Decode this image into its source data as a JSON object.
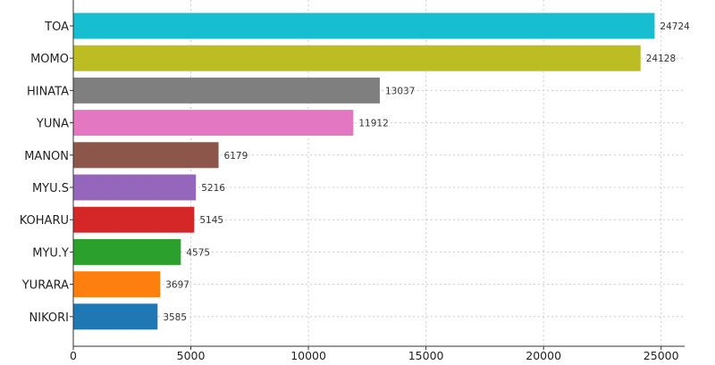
{
  "chart_data": {
    "type": "bar",
    "orientation": "horizontal",
    "title": "",
    "xlabel": "",
    "ylabel": "",
    "grid": true,
    "xlim": [
      0,
      26000
    ],
    "xticks": [
      0,
      5000,
      10000,
      15000,
      20000,
      25000
    ],
    "xtick_labels": [
      "0",
      "5000",
      "10000",
      "15000",
      "20000",
      "25000"
    ],
    "categories": [
      "TOA",
      "MOMO",
      "HINATA",
      "YUNA",
      "MANON",
      "MYU.S",
      "KOHARU",
      "MYU.Y",
      "YURARA",
      "NIKORI"
    ],
    "values": [
      24724,
      24128,
      13037,
      11912,
      6179,
      5216,
      5145,
      4575,
      3697,
      3585
    ],
    "value_labels": [
      "24724",
      "24128",
      "13037",
      "11912",
      "6179",
      "5216",
      "5145",
      "4575",
      "3697",
      "3585"
    ],
    "colors": [
      "#17becf",
      "#bcbd22",
      "#7f7f7f",
      "#e377c2",
      "#8c564b",
      "#9467bd",
      "#d62728",
      "#2ca02c",
      "#ff7f0e",
      "#1f77b4"
    ]
  }
}
